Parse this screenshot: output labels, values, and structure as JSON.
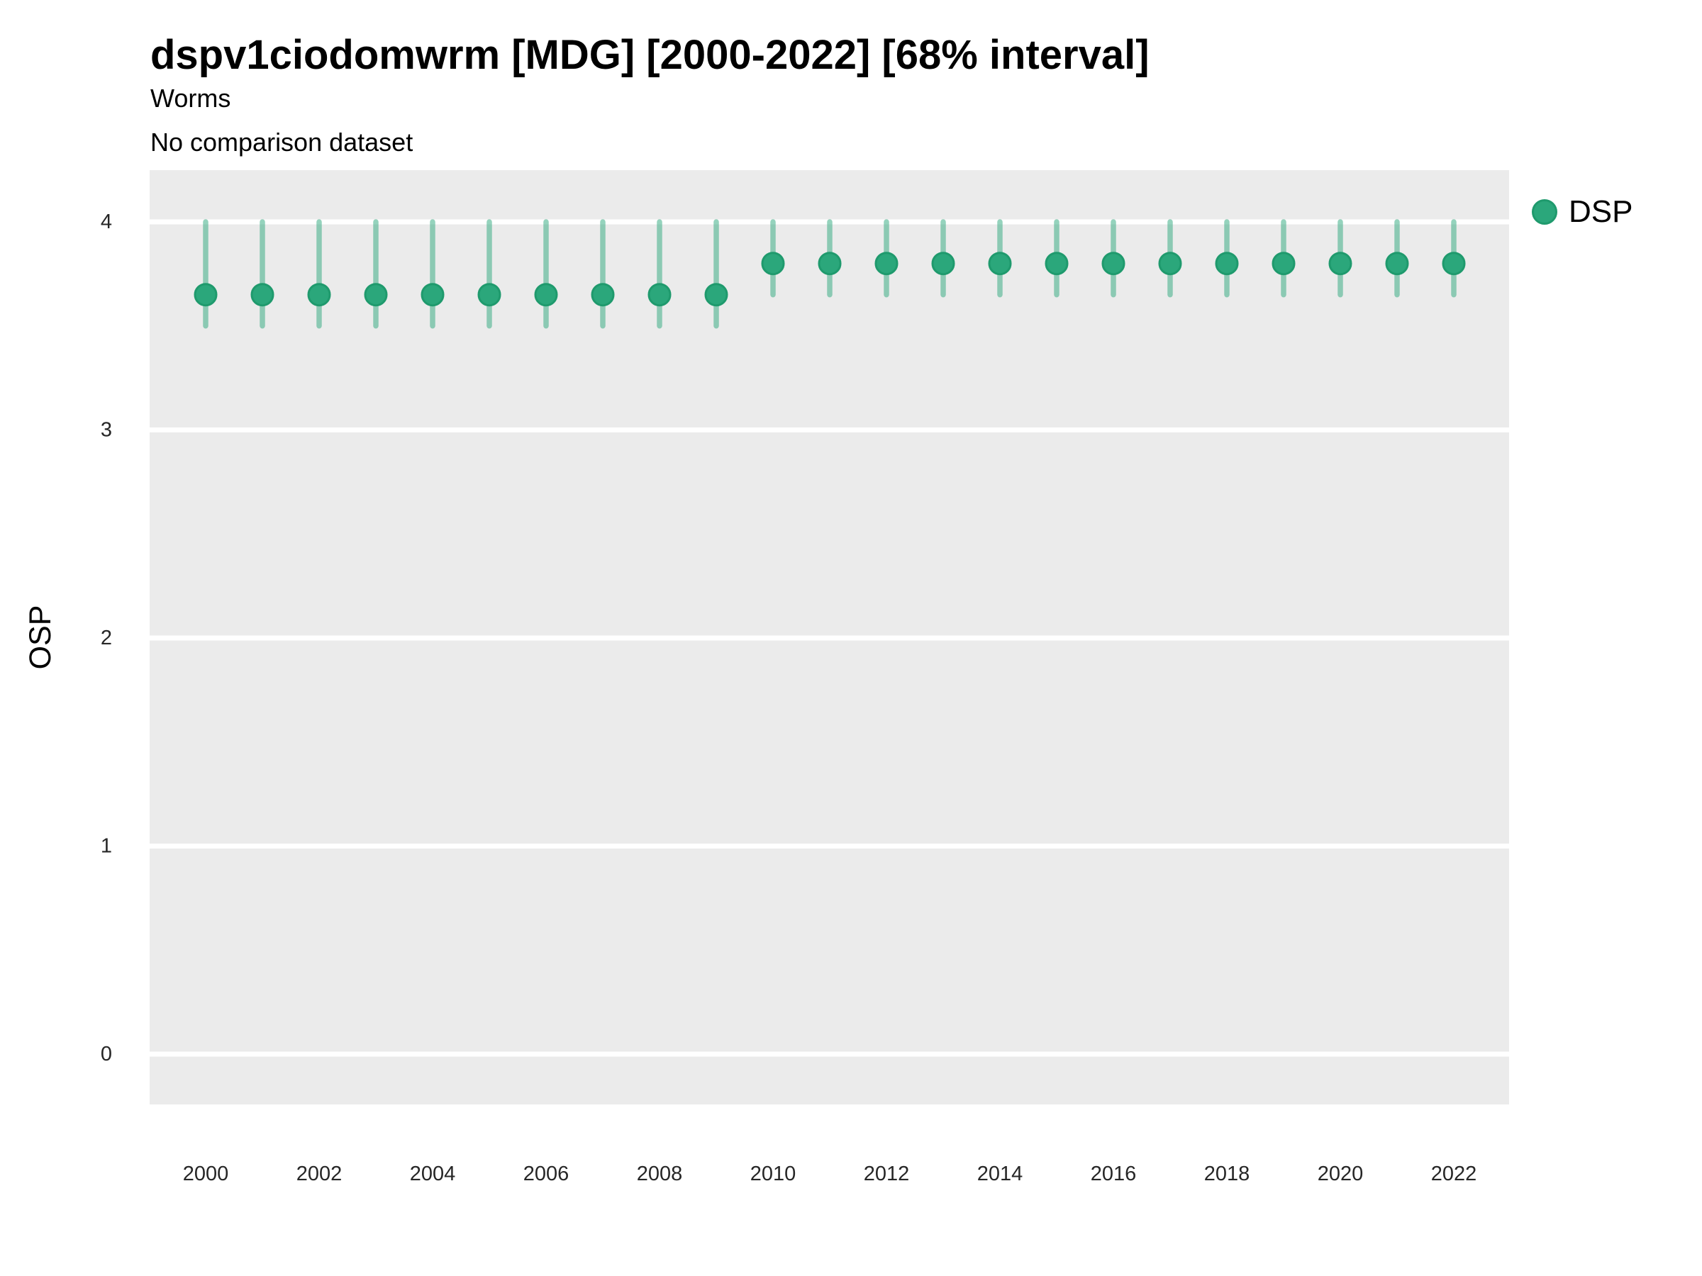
{
  "header": {
    "title": "dspv1ciodomwrm [MDG] [2000-2022] [68% interval]",
    "subtitle": "Worms",
    "comparison_note": "No comparison dataset"
  },
  "axes": {
    "y_title": "OSP",
    "y_ticks": [
      "0",
      "1",
      "2",
      "3",
      "4"
    ],
    "x_ticks": [
      "2000",
      "2002",
      "2004",
      "2006",
      "2008",
      "2010",
      "2012",
      "2014",
      "2016",
      "2018",
      "2020",
      "2022"
    ]
  },
  "legend": {
    "items": [
      {
        "label": "DSP",
        "marker": "circle-icon",
        "color": "#2BA77B"
      }
    ]
  },
  "colors": {
    "point_fill": "#2BA77B",
    "point_stroke": "#1F9A6D",
    "interval_bar": "rgba(43,167,123,0.5)",
    "panel_background": "#EBEBEB",
    "gridline": "#FFFFFF",
    "axis_text": "#262626",
    "text": "#000000"
  },
  "chart_data": {
    "type": "pointrange",
    "title": "dspv1ciodomwrm [MDG] [2000-2022] [68% interval]",
    "subtitle": "Worms",
    "note": "No comparison dataset",
    "interval_level": "68%",
    "xlabel": "",
    "ylabel": "OSP",
    "ylim": [
      0,
      4
    ],
    "y_tick_values": [
      0,
      1,
      2,
      3,
      4
    ],
    "x_tick_years": [
      2000,
      2002,
      2004,
      2006,
      2008,
      2010,
      2012,
      2014,
      2016,
      2018,
      2020,
      2022
    ],
    "grid": "horizontal-major-only",
    "legend_position": "top-right",
    "x": [
      2000,
      2001,
      2002,
      2003,
      2004,
      2005,
      2006,
      2007,
      2008,
      2009,
      2010,
      2011,
      2012,
      2013,
      2014,
      2015,
      2016,
      2017,
      2018,
      2019,
      2020,
      2021,
      2022
    ],
    "series": [
      {
        "name": "DSP",
        "point": [
          3.65,
          3.65,
          3.65,
          3.65,
          3.65,
          3.65,
          3.65,
          3.65,
          3.65,
          3.65,
          3.8,
          3.8,
          3.8,
          3.8,
          3.8,
          3.8,
          3.8,
          3.8,
          3.8,
          3.8,
          3.8,
          3.8,
          3.8
        ],
        "lower": [
          3.5,
          3.5,
          3.5,
          3.5,
          3.5,
          3.5,
          3.5,
          3.5,
          3.5,
          3.5,
          3.65,
          3.65,
          3.65,
          3.65,
          3.65,
          3.65,
          3.65,
          3.65,
          3.65,
          3.65,
          3.65,
          3.65,
          3.65
        ],
        "upper": [
          4.0,
          4.0,
          4.0,
          4.0,
          4.0,
          4.0,
          4.0,
          4.0,
          4.0,
          4.0,
          4.0,
          4.0,
          4.0,
          4.0,
          4.0,
          4.0,
          4.0,
          4.0,
          4.0,
          4.0,
          4.0,
          4.0,
          4.0
        ]
      }
    ]
  }
}
